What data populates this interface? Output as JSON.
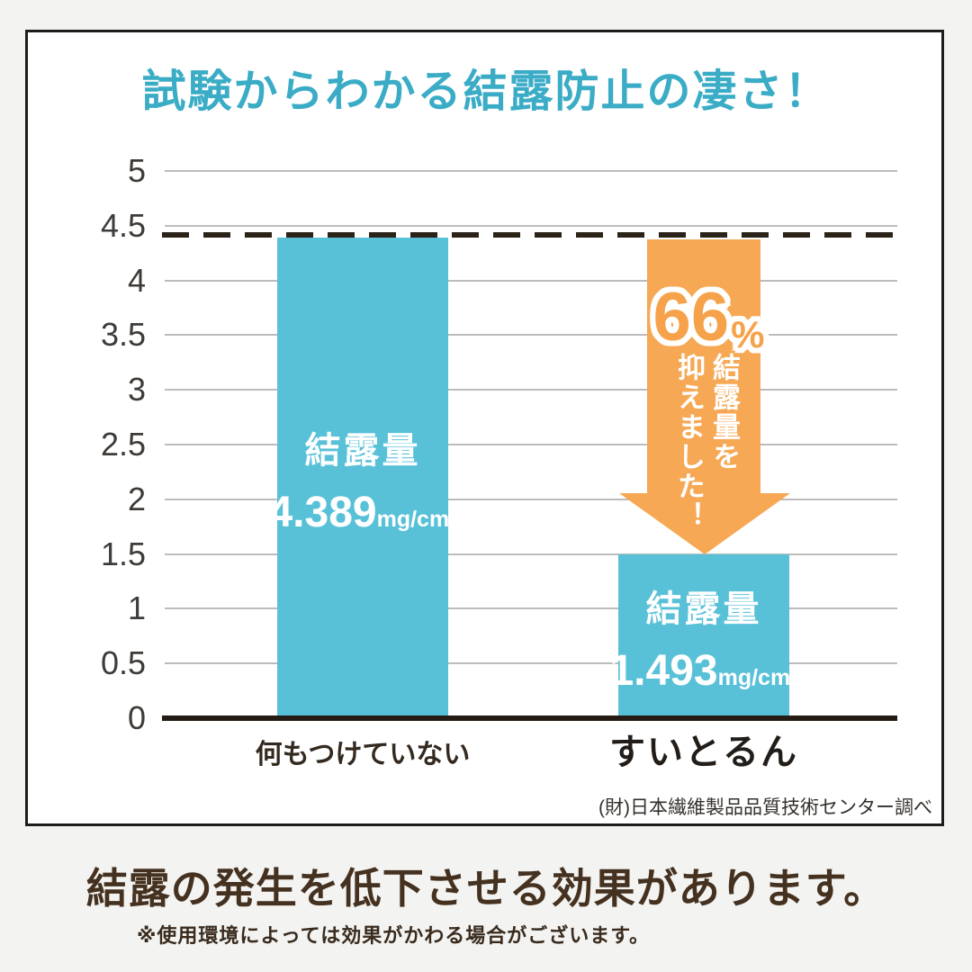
{
  "title": "試験からわかる結露防止の凄さ！",
  "source": "(財)日本繊維製品品質技術センター調べ",
  "footer": {
    "heading": "結露の発生を低下させる効果があります。",
    "note": "※使用環境によっては効果がかわる場合がございます。"
  },
  "colors": {
    "background": "#f3f3f1",
    "title": "#3bacc6",
    "bar": "#58c1d8",
    "arrow": "#f6a854",
    "percent_text": "#f5a24a",
    "heading": "#45311f",
    "baseline": "#241c14"
  },
  "chart_data": {
    "type": "bar",
    "title": "試験からわかる結露防止の凄さ！",
    "categories": [
      "何もつけていない",
      "すいとるん"
    ],
    "values": [
      4.389,
      1.493
    ],
    "bars": [
      {
        "label": "結露量",
        "value_text": "4.389",
        "unit": "mg/cm²"
      },
      {
        "label": "結露量",
        "value_text": "1.493",
        "unit": "mg/cm²"
      }
    ],
    "xlabel": "",
    "ylabel": "",
    "ylim": [
      0,
      5
    ],
    "yticks": [
      0,
      0.5,
      1,
      1.5,
      2,
      2.5,
      3,
      3.5,
      4,
      4.5,
      5
    ],
    "grid": true,
    "legend": false,
    "reference_line_y": 4.389,
    "annotation": {
      "percent": "66",
      "percent_symbol": "%",
      "vertical_lines": [
        "結露量を",
        "抑えました！"
      ]
    }
  }
}
